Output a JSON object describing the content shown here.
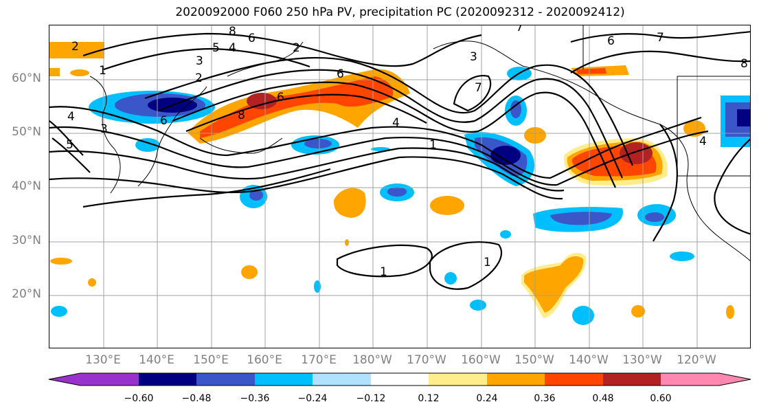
{
  "title": "2020092000 F060 250 hPa PV, precipitation PC (2020092312 - 2020092412)",
  "map": {
    "lat_labels": [
      "60°N",
      "50°N",
      "40°N",
      "30°N",
      "20°N"
    ],
    "lon_labels": [
      "130°E",
      "140°E",
      "150°E",
      "160°E",
      "170°E",
      "180°W",
      "170°W",
      "160°W",
      "150°W",
      "140°W",
      "130°W",
      "120°W"
    ],
    "contour_labels": [
      "2",
      "1",
      "8",
      "6",
      "5",
      "4",
      "3",
      "2",
      "4",
      "5",
      "3",
      "6",
      "2",
      "3",
      "8",
      "6",
      "6",
      "4",
      "1",
      "7",
      "7",
      "6",
      "7",
      "4",
      "8",
      "4",
      "1",
      "1"
    ]
  },
  "colorbar": {
    "ticks": [
      "−0.60",
      "−0.48",
      "−0.36",
      "−0.24",
      "−0.12",
      "0.12",
      "0.24",
      "0.36",
      "0.48",
      "0.60"
    ],
    "colors": [
      "#9932cc",
      "#000080",
      "#3a56c8",
      "#00bfff",
      "#b0e2ff",
      "#ffffff",
      "#ffec8b",
      "#ffa500",
      "#ff4500",
      "#b22222",
      "#ff88b0"
    ]
  }
}
